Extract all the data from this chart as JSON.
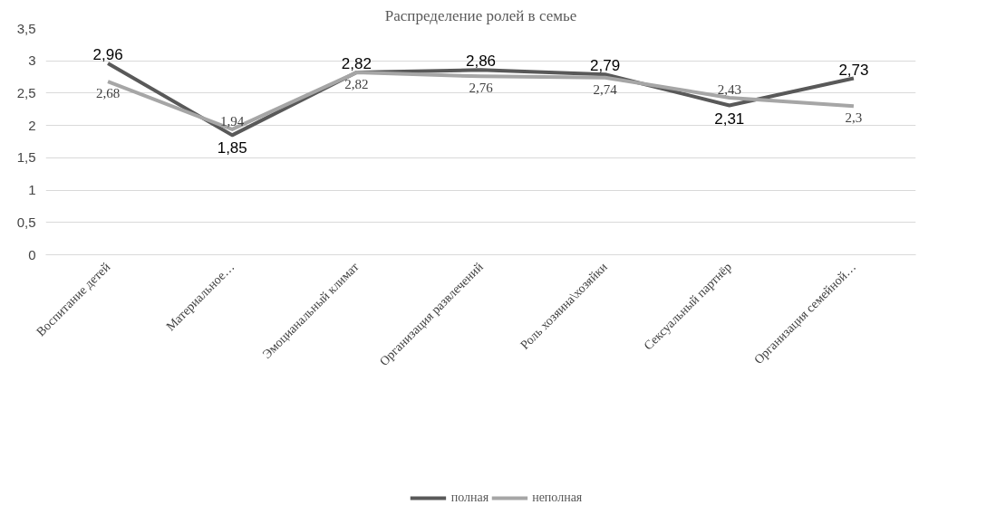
{
  "chart_data": {
    "type": "line",
    "title": "Распределение ролей в семье",
    "categories": [
      "Воспитание детей",
      "Материальное…",
      "Эмоцианальный климат",
      "Организация развлечений",
      "Роль хозяина\\хозяйки",
      "Сексуальный партнёр",
      "Организация семейной…"
    ],
    "series": [
      {
        "name": "полная",
        "color": "#595959",
        "values": [
          2.96,
          1.85,
          2.82,
          2.86,
          2.79,
          2.31,
          2.73
        ],
        "value_labels": [
          "2,96",
          "1,85",
          "2,82",
          "2,86",
          "2,79",
          "2,31",
          "2,73"
        ]
      },
      {
        "name": "неполная",
        "color": "#a6a6a6",
        "values": [
          2.68,
          1.94,
          2.82,
          2.76,
          2.74,
          2.43,
          2.3
        ],
        "value_labels": [
          "2,68",
          "1,94",
          "2,82",
          "2,76",
          "2,74",
          "2,43",
          "2,3"
        ]
      }
    ],
    "ylim": [
      0,
      3.5
    ],
    "yticks": [
      0,
      {
        "value": 0.5,
        "label": "0,5"
      },
      1,
      {
        "value": 1.5,
        "label": "1,5"
      },
      2,
      {
        "value": 2.5,
        "label": "2,5"
      },
      3,
      {
        "value": 3.5,
        "label": "3,5"
      }
    ],
    "grid": "y",
    "legend": "bottom",
    "marker": "none",
    "line_style": "solid"
  }
}
